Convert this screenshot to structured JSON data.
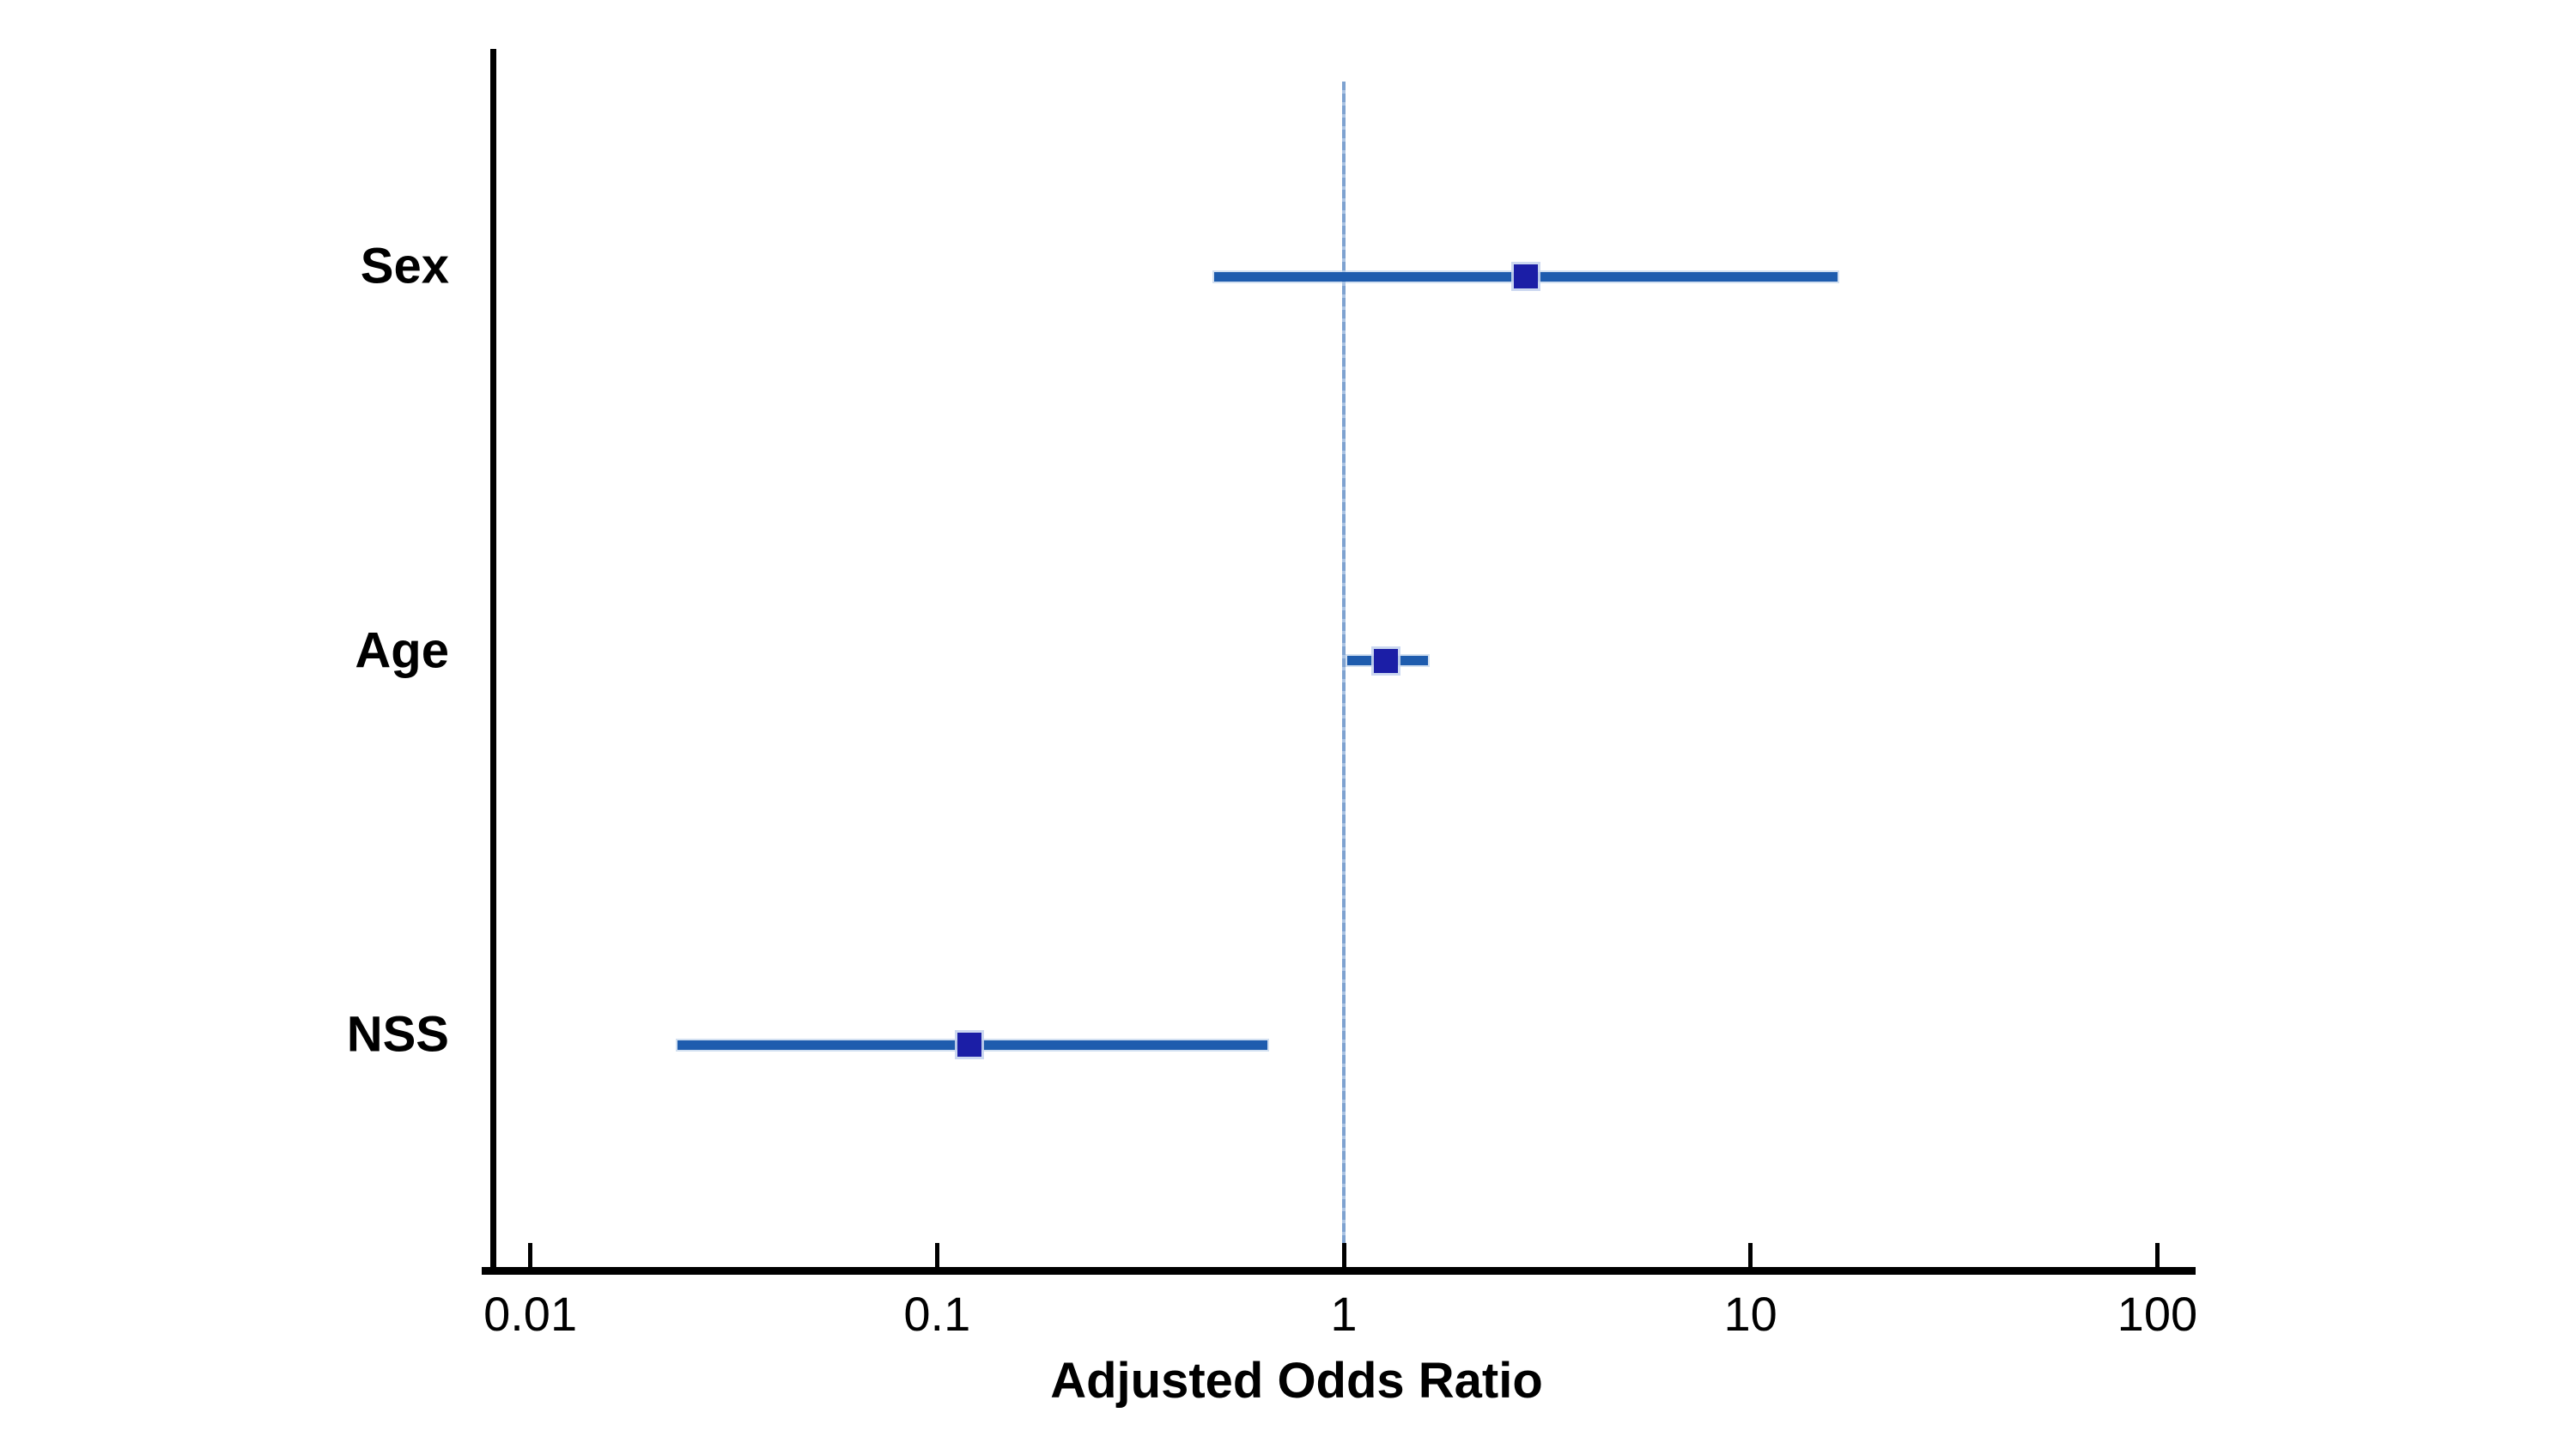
{
  "chart_data": {
    "type": "scatter",
    "subtype": "forest-plot",
    "title": "",
    "xlabel": "Adjusted Odds Ratio",
    "ylabel": "",
    "x_scale": "log",
    "xlim": [
      0.008,
      125
    ],
    "grid": false,
    "legend": false,
    "x_ticks": [
      "0.01",
      "0.1",
      "1",
      "10",
      "100"
    ],
    "x_tick_values": [
      0.01,
      0.1,
      1,
      10,
      100
    ],
    "reference_line": 1,
    "categories": [
      "Sex",
      "Age",
      "NSS"
    ],
    "series": [
      {
        "name": "Sex",
        "odds_ratio": 2.8,
        "ci_low": 0.48,
        "ci_high": 16.4
      },
      {
        "name": "Age",
        "odds_ratio": 1.27,
        "ci_low": 1.02,
        "ci_high": 1.61
      },
      {
        "name": "NSS",
        "odds_ratio": 0.12,
        "ci_low": 0.023,
        "ci_high": 0.65
      }
    ]
  },
  "colors": {
    "background": "#ffffff",
    "axis": "#000000",
    "text": "#000000",
    "ci_bar": "#1e5cae",
    "marker": "#1b1ea6",
    "marker_halo": "#c7d4ee",
    "reference_line": "#7ea2d0"
  }
}
